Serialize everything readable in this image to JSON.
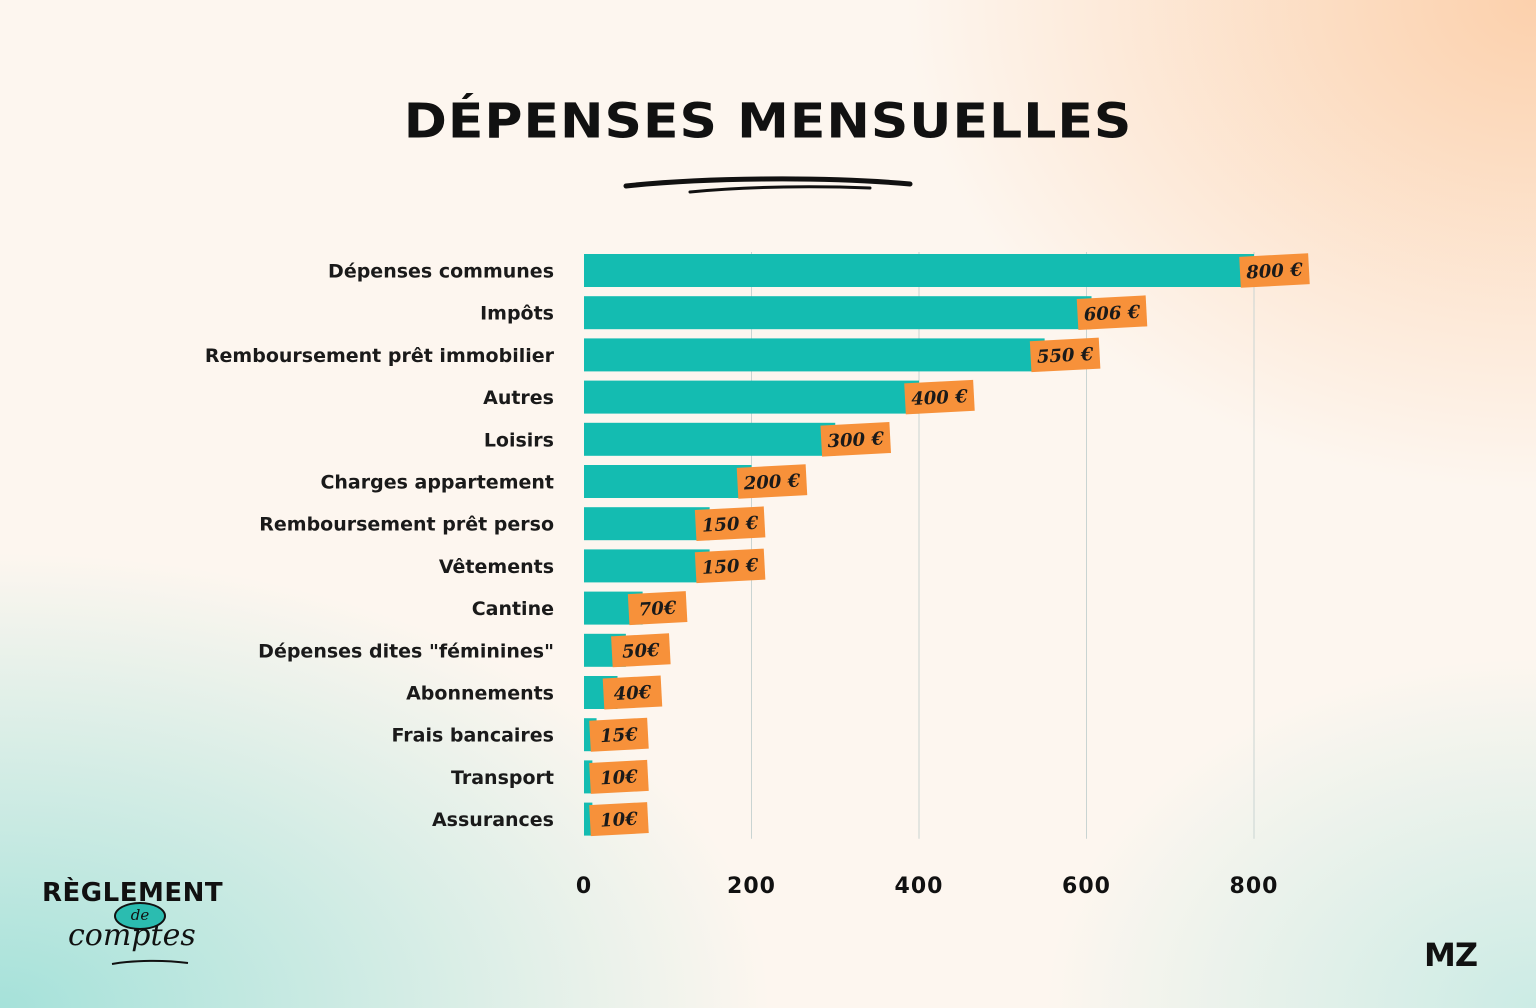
{
  "chart_data": {
    "type": "bar",
    "orientation": "horizontal",
    "title": "DÉPENSES MENSUELLES",
    "categories": [
      "Dépenses communes",
      "Impôts",
      "Remboursement prêt immobilier",
      "Autres",
      "Loisirs",
      "Charges appartement",
      "Remboursement prêt perso",
      "Vêtements",
      "Cantine",
      "Dépenses dites \"féminines\"",
      "Abonnements",
      "Frais bancaires",
      "Transport",
      "Assurances"
    ],
    "values": [
      800,
      606,
      550,
      400,
      300,
      200,
      150,
      150,
      70,
      50,
      40,
      15,
      10,
      10
    ],
    "value_labels": [
      "800 €",
      "606 €",
      "550 €",
      "400 €",
      "300 €",
      "200 €",
      "150 €",
      "150 €",
      "70€",
      "50€",
      "40€",
      "15€",
      "10€",
      "10€"
    ],
    "xlim": [
      0,
      800
    ],
    "xticks": [
      0,
      200,
      400,
      600,
      800
    ],
    "grid": "vertical",
    "colors": {
      "bar": "#14bcb1",
      "value_tag": "#f7913a",
      "text": "#111111"
    }
  },
  "branding": {
    "logo_line1": "RÈGLEMENT",
    "logo_line2": "de",
    "logo_line3": "comptes",
    "publisher": "MZ"
  }
}
